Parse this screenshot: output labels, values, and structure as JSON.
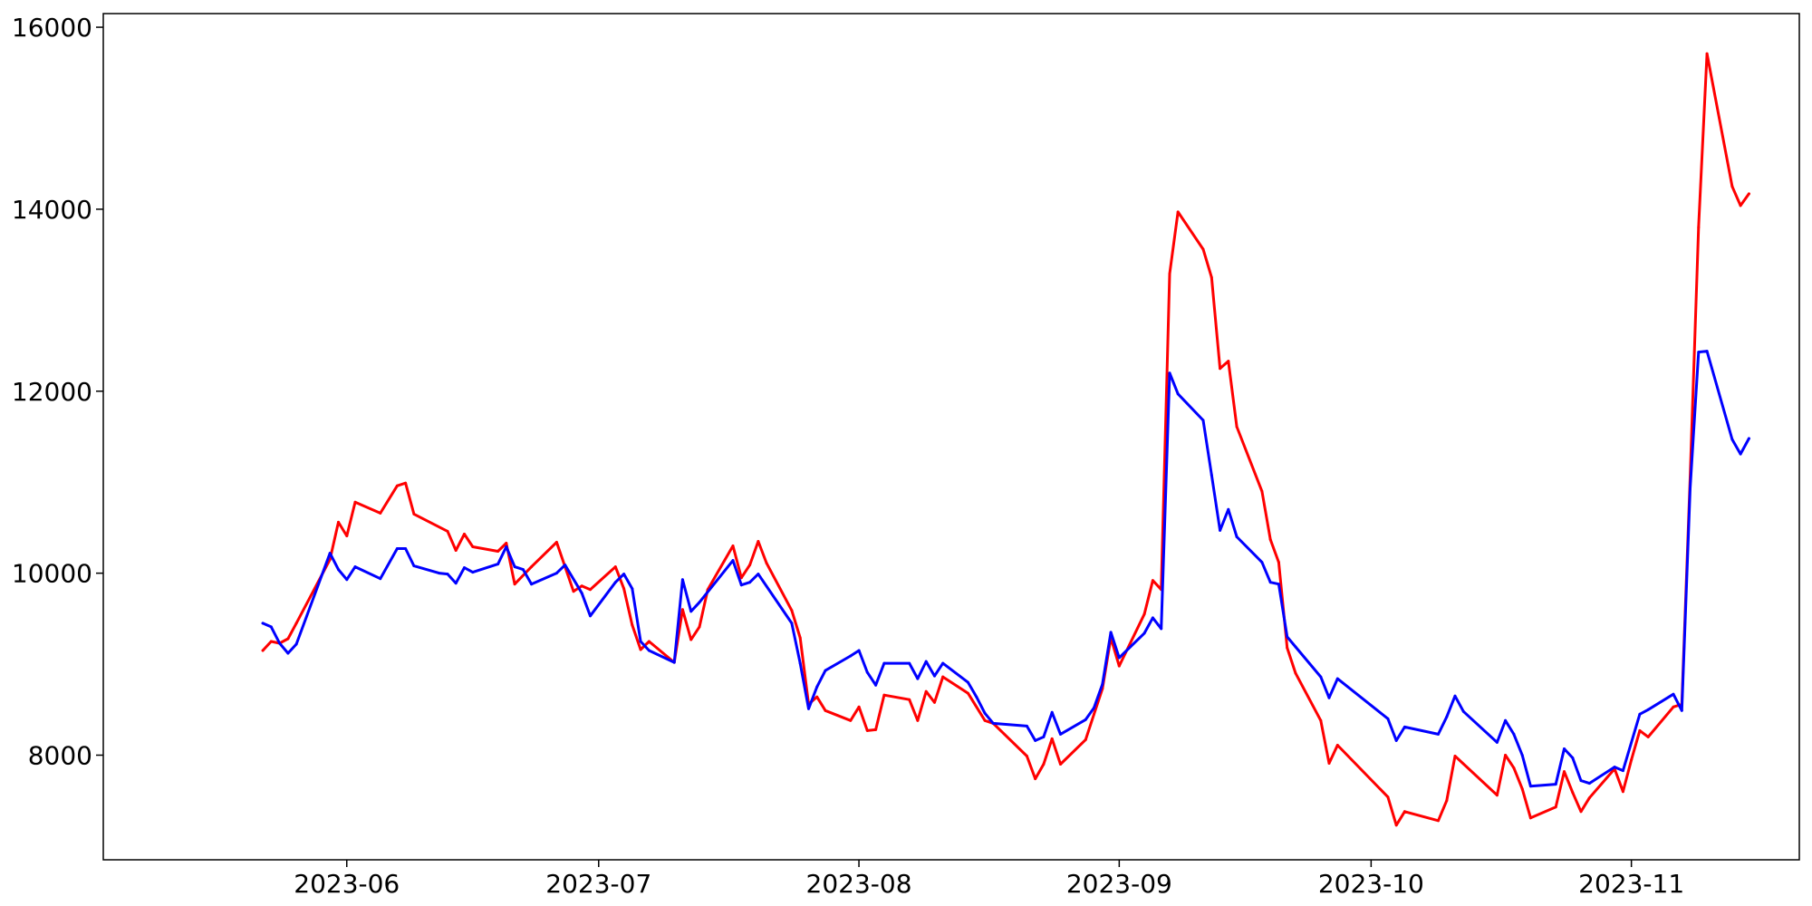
{
  "chart_data": {
    "type": "line",
    "title": "",
    "xlabel": "",
    "ylabel": "",
    "x_type": "date",
    "xlim": [
      "2023-05-03",
      "2023-11-21"
    ],
    "ylim": [
      6850,
      16150
    ],
    "x_ticks": [
      {
        "value": "2023-06-01",
        "label": "2023-06"
      },
      {
        "value": "2023-07-01",
        "label": "2023-07"
      },
      {
        "value": "2023-08-01",
        "label": "2023-08"
      },
      {
        "value": "2023-09-01",
        "label": "2023-09"
      },
      {
        "value": "2023-10-01",
        "label": "2023-10"
      },
      {
        "value": "2023-11-01",
        "label": "2023-11"
      }
    ],
    "y_ticks": [
      {
        "value": 8000,
        "label": "8000"
      },
      {
        "value": 10000,
        "label": "10000"
      },
      {
        "value": 12000,
        "label": "12000"
      },
      {
        "value": 14000,
        "label": "14000"
      },
      {
        "value": 16000,
        "label": "16000"
      }
    ],
    "grid": false,
    "legend": "none",
    "series": [
      {
        "color": "#ff0000",
        "points": [
          [
            "2023-05-22",
            9150
          ],
          [
            "2023-05-23",
            9250
          ],
          [
            "2023-05-24",
            9230
          ],
          [
            "2023-05-25",
            9280
          ],
          [
            "2023-05-26",
            9450
          ],
          [
            "2023-05-30",
            10150
          ],
          [
            "2023-05-31",
            10560
          ],
          [
            "2023-06-01",
            10410
          ],
          [
            "2023-06-02",
            10780
          ],
          [
            "2023-06-05",
            10660
          ],
          [
            "2023-06-07",
            10960
          ],
          [
            "2023-06-08",
            10990
          ],
          [
            "2023-06-09",
            10650
          ],
          [
            "2023-06-13",
            10460
          ],
          [
            "2023-06-14",
            10250
          ],
          [
            "2023-06-15",
            10430
          ],
          [
            "2023-06-16",
            10290
          ],
          [
            "2023-06-19",
            10240
          ],
          [
            "2023-06-20",
            10330
          ],
          [
            "2023-06-21",
            9880
          ],
          [
            "2023-06-23",
            10070
          ],
          [
            "2023-06-26",
            10340
          ],
          [
            "2023-06-28",
            9800
          ],
          [
            "2023-06-29",
            9860
          ],
          [
            "2023-06-30",
            9820
          ],
          [
            "2023-07-03",
            10070
          ],
          [
            "2023-07-04",
            9830
          ],
          [
            "2023-07-05",
            9430
          ],
          [
            "2023-07-06",
            9160
          ],
          [
            "2023-07-07",
            9250
          ],
          [
            "2023-07-10",
            9020
          ],
          [
            "2023-07-11",
            9600
          ],
          [
            "2023-07-12",
            9270
          ],
          [
            "2023-07-13",
            9410
          ],
          [
            "2023-07-14",
            9820
          ],
          [
            "2023-07-17",
            10300
          ],
          [
            "2023-07-18",
            9950
          ],
          [
            "2023-07-19",
            10090
          ],
          [
            "2023-07-20",
            10350
          ],
          [
            "2023-07-21",
            10110
          ],
          [
            "2023-07-24",
            9590
          ],
          [
            "2023-07-25",
            9290
          ],
          [
            "2023-07-26",
            8560
          ],
          [
            "2023-07-27",
            8640
          ],
          [
            "2023-07-28",
            8490
          ],
          [
            "2023-07-31",
            8380
          ],
          [
            "2023-08-01",
            8530
          ],
          [
            "2023-08-02",
            8270
          ],
          [
            "2023-08-03",
            8280
          ],
          [
            "2023-08-04",
            8660
          ],
          [
            "2023-08-07",
            8610
          ],
          [
            "2023-08-08",
            8380
          ],
          [
            "2023-08-09",
            8700
          ],
          [
            "2023-08-10",
            8580
          ],
          [
            "2023-08-11",
            8860
          ],
          [
            "2023-08-14",
            8680
          ],
          [
            "2023-08-16",
            8380
          ],
          [
            "2023-08-17",
            8350
          ],
          [
            "2023-08-21",
            7990
          ],
          [
            "2023-08-22",
            7740
          ],
          [
            "2023-08-23",
            7900
          ],
          [
            "2023-08-24",
            8180
          ],
          [
            "2023-08-25",
            7900
          ],
          [
            "2023-08-28",
            8170
          ],
          [
            "2023-08-29",
            8450
          ],
          [
            "2023-08-30",
            8730
          ],
          [
            "2023-08-31",
            9290
          ],
          [
            "2023-09-01",
            8980
          ],
          [
            "2023-09-04",
            9550
          ],
          [
            "2023-09-05",
            9920
          ],
          [
            "2023-09-06",
            9820
          ],
          [
            "2023-09-07",
            13290
          ],
          [
            "2023-09-08",
            13970
          ],
          [
            "2023-09-11",
            13560
          ],
          [
            "2023-09-12",
            13250
          ],
          [
            "2023-09-13",
            12250
          ],
          [
            "2023-09-14",
            12330
          ],
          [
            "2023-09-15",
            11610
          ],
          [
            "2023-09-18",
            10900
          ],
          [
            "2023-09-19",
            10370
          ],
          [
            "2023-09-20",
            10120
          ],
          [
            "2023-09-21",
            9180
          ],
          [
            "2023-09-22",
            8900
          ],
          [
            "2023-09-25",
            8380
          ],
          [
            "2023-09-26",
            7910
          ],
          [
            "2023-09-27",
            8110
          ],
          [
            "2023-10-03",
            7540
          ],
          [
            "2023-10-04",
            7230
          ],
          [
            "2023-10-05",
            7380
          ],
          [
            "2023-10-09",
            7280
          ],
          [
            "2023-10-10",
            7500
          ],
          [
            "2023-10-11",
            7990
          ],
          [
            "2023-10-16",
            7560
          ],
          [
            "2023-10-17",
            8000
          ],
          [
            "2023-10-18",
            7860
          ],
          [
            "2023-10-19",
            7630
          ],
          [
            "2023-10-20",
            7310
          ],
          [
            "2023-10-23",
            7430
          ],
          [
            "2023-10-24",
            7820
          ],
          [
            "2023-10-25",
            7590
          ],
          [
            "2023-10-26",
            7380
          ],
          [
            "2023-10-27",
            7530
          ],
          [
            "2023-10-30",
            7850
          ],
          [
            "2023-10-31",
            7600
          ],
          [
            "2023-11-01",
            7950
          ],
          [
            "2023-11-02",
            8270
          ],
          [
            "2023-11-03",
            8200
          ],
          [
            "2023-11-06",
            8530
          ],
          [
            "2023-11-07",
            8560
          ],
          [
            "2023-11-08",
            11050
          ],
          [
            "2023-11-09",
            13800
          ],
          [
            "2023-11-10",
            15710
          ],
          [
            "2023-11-13",
            14250
          ],
          [
            "2023-11-14",
            14040
          ],
          [
            "2023-11-15",
            14170
          ]
        ]
      },
      {
        "color": "#0000ff",
        "points": [
          [
            "2023-05-22",
            9450
          ],
          [
            "2023-05-23",
            9410
          ],
          [
            "2023-05-24",
            9230
          ],
          [
            "2023-05-25",
            9120
          ],
          [
            "2023-05-26",
            9220
          ],
          [
            "2023-05-30",
            10220
          ],
          [
            "2023-05-31",
            10040
          ],
          [
            "2023-06-01",
            9930
          ],
          [
            "2023-06-02",
            10070
          ],
          [
            "2023-06-05",
            9940
          ],
          [
            "2023-06-07",
            10270
          ],
          [
            "2023-06-08",
            10270
          ],
          [
            "2023-06-09",
            10080
          ],
          [
            "2023-06-12",
            10000
          ],
          [
            "2023-06-13",
            9990
          ],
          [
            "2023-06-14",
            9890
          ],
          [
            "2023-06-15",
            10060
          ],
          [
            "2023-06-16",
            10010
          ],
          [
            "2023-06-19",
            10100
          ],
          [
            "2023-06-20",
            10290
          ],
          [
            "2023-06-21",
            10070
          ],
          [
            "2023-06-22",
            10040
          ],
          [
            "2023-06-23",
            9880
          ],
          [
            "2023-06-26",
            10000
          ],
          [
            "2023-06-27",
            10090
          ],
          [
            "2023-06-29",
            9780
          ],
          [
            "2023-06-30",
            9530
          ],
          [
            "2023-07-03",
            9900
          ],
          [
            "2023-07-04",
            9990
          ],
          [
            "2023-07-05",
            9830
          ],
          [
            "2023-07-06",
            9250
          ],
          [
            "2023-07-07",
            9150
          ],
          [
            "2023-07-10",
            9020
          ],
          [
            "2023-07-11",
            9930
          ],
          [
            "2023-07-12",
            9580
          ],
          [
            "2023-07-13",
            9680
          ],
          [
            "2023-07-17",
            10140
          ],
          [
            "2023-07-18",
            9870
          ],
          [
            "2023-07-19",
            9900
          ],
          [
            "2023-07-20",
            9990
          ],
          [
            "2023-07-24",
            9450
          ],
          [
            "2023-07-25",
            9010
          ],
          [
            "2023-07-26",
            8510
          ],
          [
            "2023-07-27",
            8750
          ],
          [
            "2023-07-28",
            8930
          ],
          [
            "2023-07-31",
            9090
          ],
          [
            "2023-08-01",
            9150
          ],
          [
            "2023-08-02",
            8910
          ],
          [
            "2023-08-03",
            8770
          ],
          [
            "2023-08-04",
            9010
          ],
          [
            "2023-08-07",
            9010
          ],
          [
            "2023-08-08",
            8840
          ],
          [
            "2023-08-09",
            9030
          ],
          [
            "2023-08-10",
            8870
          ],
          [
            "2023-08-11",
            9010
          ],
          [
            "2023-08-14",
            8800
          ],
          [
            "2023-08-15",
            8640
          ],
          [
            "2023-08-16",
            8460
          ],
          [
            "2023-08-17",
            8350
          ],
          [
            "2023-08-21",
            8320
          ],
          [
            "2023-08-22",
            8160
          ],
          [
            "2023-08-23",
            8200
          ],
          [
            "2023-08-24",
            8470
          ],
          [
            "2023-08-25",
            8230
          ],
          [
            "2023-08-28",
            8390
          ],
          [
            "2023-08-29",
            8520
          ],
          [
            "2023-08-30",
            8780
          ],
          [
            "2023-08-31",
            9350
          ],
          [
            "2023-09-01",
            9070
          ],
          [
            "2023-09-04",
            9340
          ],
          [
            "2023-09-05",
            9510
          ],
          [
            "2023-09-06",
            9390
          ],
          [
            "2023-09-07",
            12200
          ],
          [
            "2023-09-08",
            11970
          ],
          [
            "2023-09-11",
            11680
          ],
          [
            "2023-09-12",
            11080
          ],
          [
            "2023-09-13",
            10470
          ],
          [
            "2023-09-14",
            10700
          ],
          [
            "2023-09-15",
            10400
          ],
          [
            "2023-09-18",
            10120
          ],
          [
            "2023-09-19",
            9900
          ],
          [
            "2023-09-20",
            9880
          ],
          [
            "2023-09-21",
            9300
          ],
          [
            "2023-09-22",
            9190
          ],
          [
            "2023-09-25",
            8860
          ],
          [
            "2023-09-26",
            8630
          ],
          [
            "2023-09-27",
            8840
          ],
          [
            "2023-10-03",
            8400
          ],
          [
            "2023-10-04",
            8160
          ],
          [
            "2023-10-05",
            8310
          ],
          [
            "2023-10-09",
            8230
          ],
          [
            "2023-10-10",
            8420
          ],
          [
            "2023-10-11",
            8650
          ],
          [
            "2023-10-12",
            8480
          ],
          [
            "2023-10-16",
            8140
          ],
          [
            "2023-10-17",
            8380
          ],
          [
            "2023-10-18",
            8230
          ],
          [
            "2023-10-19",
            8000
          ],
          [
            "2023-10-20",
            7660
          ],
          [
            "2023-10-23",
            7680
          ],
          [
            "2023-10-24",
            8070
          ],
          [
            "2023-10-25",
            7970
          ],
          [
            "2023-10-26",
            7720
          ],
          [
            "2023-10-27",
            7690
          ],
          [
            "2023-10-30",
            7870
          ],
          [
            "2023-10-31",
            7830
          ],
          [
            "2023-11-02",
            8450
          ],
          [
            "2023-11-03",
            8500
          ],
          [
            "2023-11-06",
            8670
          ],
          [
            "2023-11-07",
            8490
          ],
          [
            "2023-11-08",
            10930
          ],
          [
            "2023-11-09",
            12430
          ],
          [
            "2023-11-10",
            12440
          ],
          [
            "2023-11-13",
            11470
          ],
          [
            "2023-11-14",
            11310
          ],
          [
            "2023-11-15",
            11480
          ]
        ]
      }
    ]
  }
}
